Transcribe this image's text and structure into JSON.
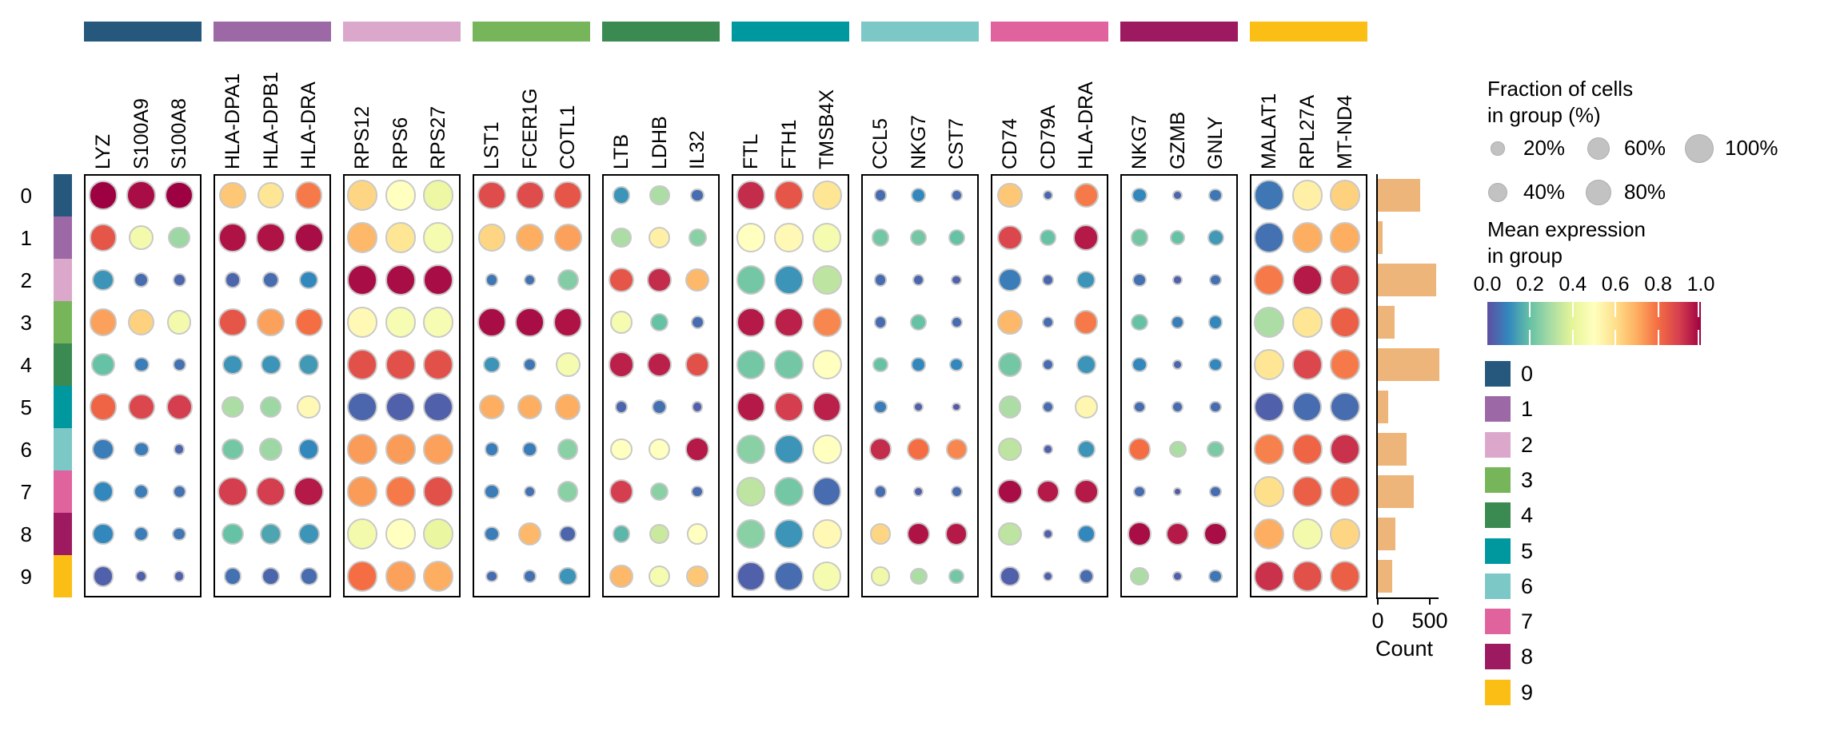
{
  "chart_data": {
    "type": "scatter",
    "subtype": "dotplot",
    "rows": [
      {
        "label": "0",
        "color": "#26577C",
        "count": 410
      },
      {
        "label": "1",
        "color": "#9C68A6",
        "count": 45
      },
      {
        "label": "2",
        "color": "#DBA8CC",
        "count": 560
      },
      {
        "label": "3",
        "color": "#77B55A",
        "count": 160
      },
      {
        "label": "4",
        "color": "#3B8A51",
        "count": 590
      },
      {
        "label": "5",
        "color": "#00989F",
        "count": 100
      },
      {
        "label": "6",
        "color": "#7BC8C7",
        "count": 280
      },
      {
        "label": "7",
        "color": "#E0639E",
        "count": 345
      },
      {
        "label": "8",
        "color": "#9E1A60",
        "count": 170
      },
      {
        "label": "9",
        "color": "#FBBE15",
        "count": 140
      }
    ],
    "gene_groups": [
      {
        "genes": [
          "LYZ",
          "S100A9",
          "S100A8"
        ],
        "color": "#26577C"
      },
      {
        "genes": [
          "HLA-DPA1",
          "HLA-DPB1",
          "HLA-DRA"
        ],
        "color": "#9C68A6"
      },
      {
        "genes": [
          "RPS12",
          "RPS6",
          "RPS27"
        ],
        "color": "#DBA8CC"
      },
      {
        "genes": [
          "LST1",
          "FCER1G",
          "COTL1"
        ],
        "color": "#77B55A"
      },
      {
        "genes": [
          "LTB",
          "LDHB",
          "IL32"
        ],
        "color": "#3B8A51"
      },
      {
        "genes": [
          "FTL",
          "FTH1",
          "TMSB4X"
        ],
        "color": "#00989F"
      },
      {
        "genes": [
          "CCL5",
          "NKG7",
          "CST7"
        ],
        "color": "#7BC8C7"
      },
      {
        "genes": [
          "CD74",
          "CD79A",
          "HLA-DRA"
        ],
        "color": "#E0639E"
      },
      {
        "genes": [
          "NKG7",
          "GZMB",
          "GNLY"
        ],
        "color": "#9E1A60"
      },
      {
        "genes": [
          "MALAT1",
          "RPL27A",
          "MT-ND4"
        ],
        "color": "#FBBE15"
      }
    ],
    "mean_expression": [
      [
        1.0,
        0.98,
        1.0,
        0.65,
        0.58,
        0.78,
        0.62,
        0.5,
        0.43,
        0.87,
        0.87,
        0.85,
        0.12,
        0.3,
        0.05,
        0.93,
        0.85,
        0.58,
        0.05,
        0.1,
        0.05,
        0.65,
        0.04,
        0.78,
        0.1,
        0.04,
        0.07,
        0.07,
        0.55,
        0.63
      ],
      [
        0.85,
        0.45,
        0.28,
        0.97,
        0.97,
        0.98,
        0.68,
        0.58,
        0.46,
        0.62,
        0.7,
        0.72,
        0.3,
        0.55,
        0.25,
        0.5,
        0.52,
        0.46,
        0.22,
        0.22,
        0.2,
        0.88,
        0.2,
        0.96,
        0.22,
        0.2,
        0.13,
        0.06,
        0.7,
        0.7
      ],
      [
        0.12,
        0.05,
        0.04,
        0.04,
        0.05,
        0.1,
        0.98,
        0.98,
        0.98,
        0.07,
        0.06,
        0.24,
        0.85,
        0.93,
        0.68,
        0.22,
        0.12,
        0.33,
        0.05,
        0.04,
        0.03,
        0.08,
        0.04,
        0.12,
        0.06,
        0.03,
        0.06,
        0.78,
        0.96,
        0.87
      ],
      [
        0.72,
        0.63,
        0.45,
        0.85,
        0.72,
        0.8,
        0.52,
        0.47,
        0.47,
        0.98,
        0.98,
        0.97,
        0.46,
        0.2,
        0.05,
        0.96,
        0.95,
        0.76,
        0.05,
        0.2,
        0.05,
        0.68,
        0.05,
        0.78,
        0.2,
        0.08,
        0.1,
        0.3,
        0.58,
        0.83
      ],
      [
        0.2,
        0.08,
        0.06,
        0.12,
        0.12,
        0.13,
        0.86,
        0.86,
        0.86,
        0.12,
        0.07,
        0.46,
        0.95,
        0.95,
        0.86,
        0.22,
        0.22,
        0.5,
        0.2,
        0.1,
        0.1,
        0.22,
        0.05,
        0.12,
        0.1,
        0.04,
        0.1,
        0.58,
        0.88,
        0.78
      ],
      [
        0.82,
        0.88,
        0.9,
        0.3,
        0.28,
        0.52,
        0.04,
        0.03,
        0.03,
        0.7,
        0.7,
        0.7,
        0.04,
        0.06,
        0.03,
        0.96,
        0.9,
        0.95,
        0.08,
        0.03,
        0.02,
        0.3,
        0.05,
        0.53,
        0.05,
        0.05,
        0.05,
        0.03,
        0.05,
        0.05
      ],
      [
        0.08,
        0.08,
        0.04,
        0.22,
        0.28,
        0.1,
        0.73,
        0.73,
        0.72,
        0.08,
        0.08,
        0.25,
        0.5,
        0.5,
        0.96,
        0.25,
        0.12,
        0.5,
        0.93,
        0.8,
        0.76,
        0.33,
        0.03,
        0.12,
        0.8,
        0.3,
        0.23,
        0.77,
        0.82,
        0.92
      ],
      [
        0.1,
        0.08,
        0.06,
        0.9,
        0.9,
        0.96,
        0.73,
        0.78,
        0.86,
        0.08,
        0.06,
        0.25,
        0.9,
        0.25,
        0.05,
        0.33,
        0.22,
        0.05,
        0.05,
        0.03,
        0.05,
        0.98,
        0.96,
        0.96,
        0.05,
        0.02,
        0.05,
        0.6,
        0.83,
        0.83
      ],
      [
        0.1,
        0.08,
        0.07,
        0.2,
        0.15,
        0.12,
        0.45,
        0.5,
        0.42,
        0.08,
        0.68,
        0.04,
        0.18,
        0.35,
        0.5,
        0.25,
        0.12,
        0.52,
        0.62,
        0.97,
        0.96,
        0.33,
        0.03,
        0.1,
        0.98,
        0.96,
        0.98,
        0.7,
        0.45,
        0.62
      ],
      [
        0.03,
        0.03,
        0.03,
        0.06,
        0.04,
        0.05,
        0.8,
        0.72,
        0.7,
        0.05,
        0.06,
        0.12,
        0.68,
        0.46,
        0.65,
        0.03,
        0.05,
        0.46,
        0.44,
        0.3,
        0.22,
        0.03,
        0.03,
        0.05,
        0.3,
        0.03,
        0.07,
        0.92,
        0.86,
        0.83
      ]
    ],
    "fraction_pct": [
      [
        88,
        88,
        85,
        72,
        72,
        78,
        97,
        97,
        97,
        85,
        85,
        85,
        30,
        40,
        15,
        90,
        90,
        90,
        14,
        20,
        10,
        62,
        8,
        62,
        20,
        8,
        15,
        97,
        97,
        97
      ],
      [
        80,
        62,
        48,
        88,
        88,
        90,
        97,
        97,
        97,
        78,
        80,
        80,
        40,
        45,
        30,
        88,
        88,
        88,
        30,
        26,
        24,
        62,
        22,
        66,
        28,
        20,
        24,
        97,
        97,
        97
      ],
      [
        48,
        20,
        14,
        24,
        26,
        32,
        97,
        97,
        97,
        14,
        11,
        44,
        62,
        60,
        54,
        88,
        90,
        90,
        14,
        11,
        8,
        54,
        9,
        32,
        15,
        6,
        12,
        97,
        97,
        97
      ],
      [
        80,
        72,
        58,
        82,
        78,
        82,
        97,
        97,
        97,
        88,
        88,
        88,
        50,
        30,
        14,
        90,
        90,
        90,
        14,
        24,
        10,
        62,
        11,
        58,
        26,
        14,
        17,
        97,
        97,
        97
      ],
      [
        55,
        21,
        14,
        38,
        40,
        42,
        97,
        97,
        97,
        27,
        14,
        60,
        68,
        62,
        57,
        90,
        90,
        90,
        21,
        17,
        16,
        60,
        11,
        37,
        19,
        8,
        15,
        97,
        97,
        97
      ],
      [
        80,
        75,
        70,
        47,
        46,
        56,
        95,
        95,
        95,
        64,
        64,
        66,
        14,
        20,
        9,
        88,
        88,
        88,
        16,
        7,
        5,
        50,
        11,
        52,
        12,
        11,
        12,
        95,
        95,
        95
      ],
      [
        46,
        21,
        9,
        46,
        50,
        42,
        97,
        97,
        97,
        17,
        17,
        41,
        47,
        44,
        58,
        90,
        90,
        90,
        52,
        54,
        43,
        56,
        6,
        31,
        52,
        27,
        27,
        97,
        97,
        97
      ],
      [
        44,
        19,
        14,
        94,
        94,
        94,
        97,
        97,
        97,
        19,
        11,
        41,
        58,
        31,
        11,
        90,
        90,
        88,
        14,
        7,
        10,
        62,
        55,
        60,
        12,
        5,
        12,
        97,
        97,
        97
      ],
      [
        48,
        19,
        16,
        46,
        46,
        44,
        97,
        97,
        97,
        19,
        54,
        27,
        29,
        38,
        41,
        90,
        90,
        90,
        44,
        55,
        50,
        56,
        6,
        29,
        58,
        54,
        56,
        97,
        97,
        97
      ],
      [
        44,
        11,
        9,
        29,
        31,
        29,
        97,
        97,
        97,
        11,
        13,
        33,
        54,
        44,
        47,
        88,
        88,
        88,
        34,
        27,
        21,
        37,
        8,
        19,
        31,
        8,
        15,
        97,
        97,
        97
      ]
    ],
    "size_legend": {
      "title_line1": "Fraction of cells",
      "title_line2": "in group (%)",
      "entries": [
        {
          "label": "20%",
          "value": 20
        },
        {
          "label": "40%",
          "value": 40
        },
        {
          "label": "60%",
          "value": 60
        },
        {
          "label": "80%",
          "value": 80
        },
        {
          "label": "100%",
          "value": 100
        }
      ]
    },
    "color_legend": {
      "title_line1": "Mean expression",
      "title_line2": "in group",
      "ticks": [
        "0.0",
        "0.2",
        "0.4",
        "0.6",
        "0.8",
        "1.0"
      ],
      "colormap": "Spectral_r"
    },
    "count_axis": {
      "tick_labels": [
        "0",
        "500"
      ],
      "tick_values": [
        0,
        500
      ],
      "max": 500,
      "label": "Count",
      "bar_color": "#EEB57A"
    },
    "cluster_legend_labels": [
      "0",
      "1",
      "2",
      "3",
      "4",
      "5",
      "6",
      "7",
      "8",
      "9"
    ]
  }
}
